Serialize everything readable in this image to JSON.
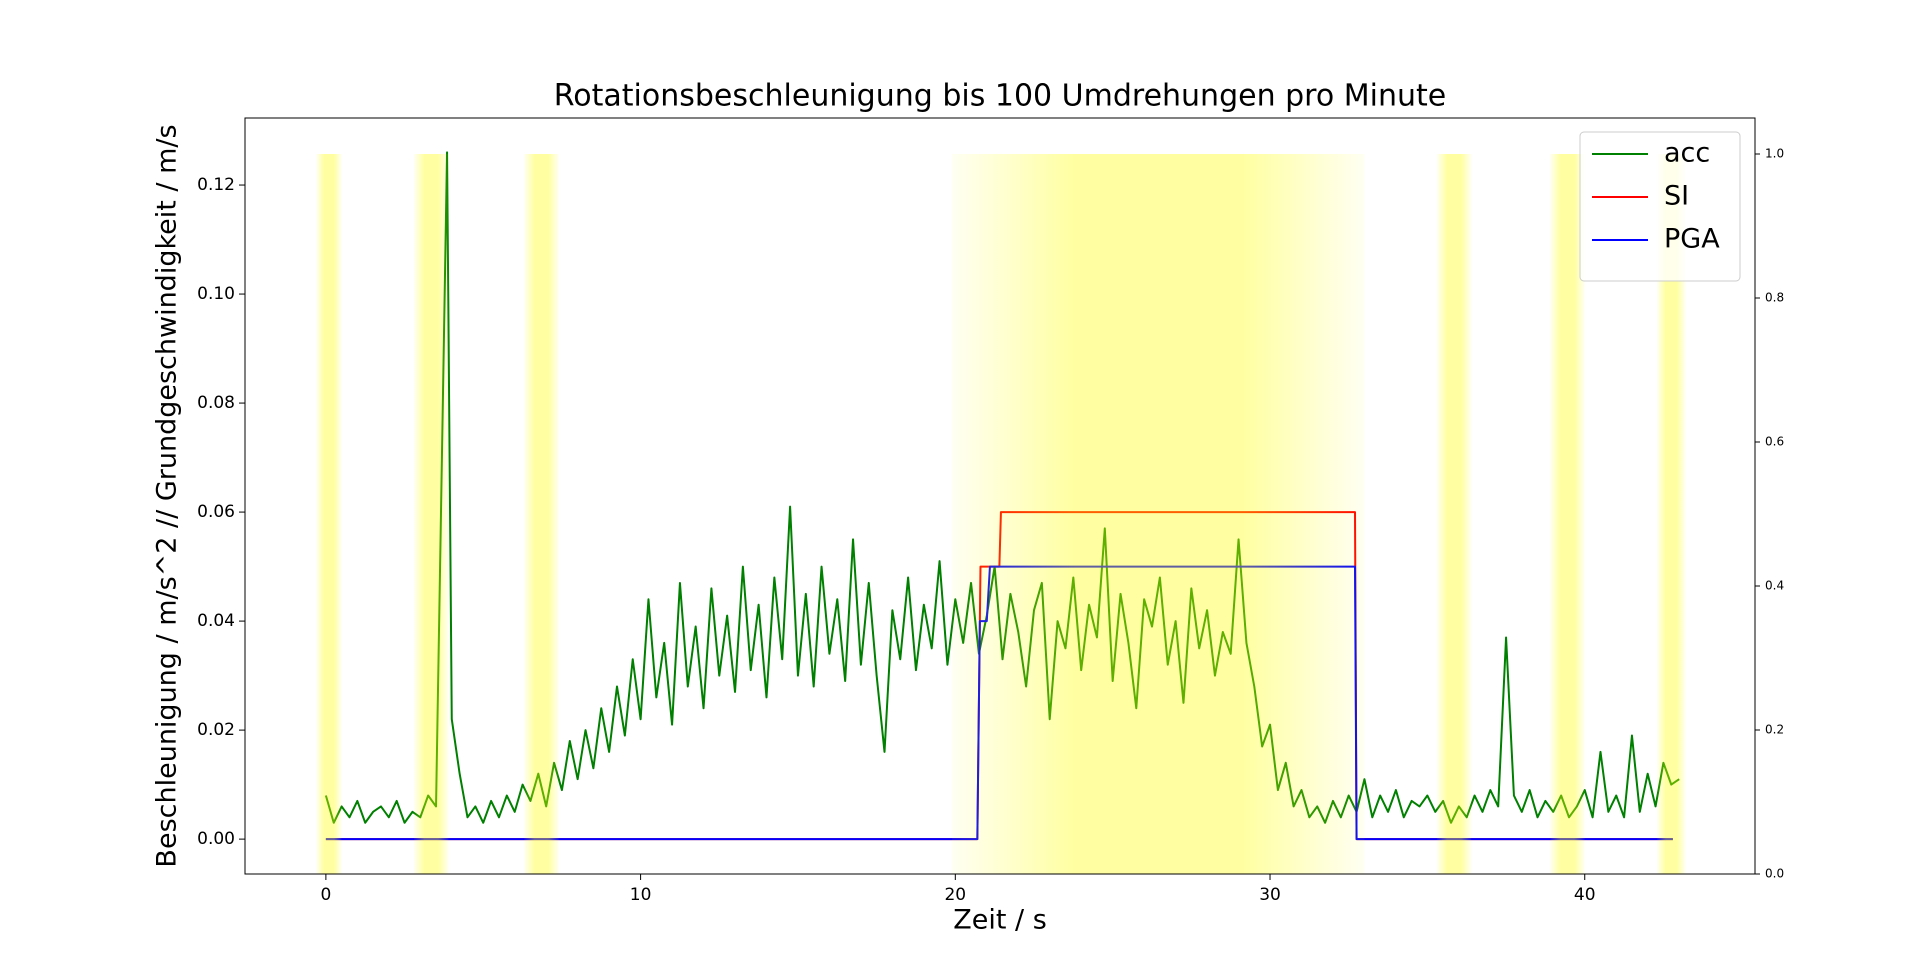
{
  "chart_data": {
    "type": "line",
    "title": "Rotationsbeschleunigung bis 100 Umdrehungen pro Minute",
    "xlabel": "Zeit / s",
    "ylabel": "Beschleunigung / m/s^2 // Grundgeschwindigkeit / m/s",
    "xlim": [
      -2.57,
      45.41
    ],
    "ylim": [
      -0.0064,
      0.1323
    ],
    "y2lim": [
      0,
      1.05
    ],
    "xticks": [
      0,
      10,
      20,
      30,
      40
    ],
    "yticks": [
      {
        "value": 0,
        "label": "0.00"
      },
      {
        "value": 0.02,
        "label": "0.02"
      },
      {
        "value": 0.04,
        "label": "0.04"
      },
      {
        "value": 0.06,
        "label": "0.06"
      },
      {
        "value": 0.08,
        "label": "0.08"
      },
      {
        "value": 0.1,
        "label": "0.10"
      },
      {
        "value": 0.12,
        "label": "0.12"
      }
    ],
    "y2ticks": [
      {
        "value": 0,
        "label": "0.0"
      },
      {
        "value": 0.2,
        "label": "0.2"
      },
      {
        "value": 0.4,
        "label": "0.4"
      },
      {
        "value": 0.6,
        "label": "0.6"
      },
      {
        "value": 0.8,
        "label": "0.8"
      },
      {
        "value": 1,
        "label": "1.0"
      }
    ],
    "legend": "upper right",
    "highlight_color": "#ffff00",
    "highlight_y2": [
      0,
      1
    ],
    "highlights": [
      [
        -0.3,
        0.5
      ],
      [
        2.8,
        3.9
      ],
      [
        6.3,
        7.4
      ],
      [
        19.9,
        33.0
      ],
      [
        35.3,
        36.4
      ],
      [
        38.9,
        40.0
      ],
      [
        42.3,
        43.2
      ]
    ],
    "series": [
      {
        "name": "acc",
        "color": "#008000",
        "x": [
          0,
          0.25,
          0.5,
          0.75,
          1,
          1.25,
          1.5,
          1.75,
          2,
          2.25,
          2.5,
          2.75,
          3,
          3.25,
          3.5,
          3.85,
          4,
          4.25,
          4.5,
          4.75,
          5,
          5.25,
          5.5,
          5.75,
          6,
          6.25,
          6.5,
          6.75,
          7,
          7.25,
          7.5,
          7.75,
          8,
          8.25,
          8.5,
          8.75,
          9,
          9.25,
          9.5,
          9.75,
          10,
          10.25,
          10.5,
          10.75,
          11,
          11.25,
          11.5,
          11.75,
          12,
          12.25,
          12.5,
          12.75,
          13,
          13.25,
          13.5,
          13.75,
          14,
          14.25,
          14.5,
          14.75,
          15,
          15.25,
          15.5,
          15.75,
          16,
          16.25,
          16.5,
          16.75,
          17,
          17.25,
          17.5,
          17.75,
          18,
          18.25,
          18.5,
          18.75,
          19,
          19.25,
          19.5,
          19.75,
          20,
          20.25,
          20.5,
          20.75,
          21,
          21.25,
          21.5,
          21.75,
          22,
          22.25,
          22.5,
          22.75,
          23,
          23.25,
          23.5,
          23.75,
          24,
          24.25,
          24.5,
          24.75,
          25,
          25.25,
          25.5,
          25.75,
          26,
          26.25,
          26.5,
          26.75,
          27,
          27.25,
          27.5,
          27.75,
          28,
          28.25,
          28.5,
          28.75,
          29,
          29.25,
          29.5,
          29.75,
          30,
          30.25,
          30.5,
          30.75,
          31,
          31.25,
          31.5,
          31.75,
          32,
          32.25,
          32.5,
          32.75,
          33,
          33.25,
          33.5,
          33.75,
          34,
          34.25,
          34.5,
          34.75,
          35,
          35.25,
          35.5,
          35.75,
          36,
          36.25,
          36.5,
          36.75,
          37,
          37.25,
          37.5,
          37.75,
          38,
          38.25,
          38.5,
          38.75,
          39,
          39.25,
          39.5,
          39.75,
          40,
          40.25,
          40.5,
          40.75,
          41,
          41.25,
          41.5,
          41.75,
          42,
          42.25,
          42.5,
          42.75,
          43
        ],
        "values": [
          0.008,
          0.003,
          0.006,
          0.004,
          0.007,
          0.003,
          0.005,
          0.006,
          0.004,
          0.007,
          0.003,
          0.005,
          0.004,
          0.008,
          0.006,
          0.126,
          0.022,
          0.012,
          0.004,
          0.006,
          0.003,
          0.007,
          0.004,
          0.008,
          0.005,
          0.01,
          0.007,
          0.012,
          0.006,
          0.014,
          0.009,
          0.018,
          0.011,
          0.02,
          0.013,
          0.024,
          0.016,
          0.028,
          0.019,
          0.033,
          0.022,
          0.044,
          0.026,
          0.036,
          0.021,
          0.047,
          0.028,
          0.039,
          0.024,
          0.046,
          0.03,
          0.041,
          0.027,
          0.05,
          0.031,
          0.043,
          0.026,
          0.048,
          0.033,
          0.061,
          0.03,
          0.045,
          0.028,
          0.05,
          0.034,
          0.044,
          0.029,
          0.055,
          0.032,
          0.047,
          0.03,
          0.016,
          0.042,
          0.033,
          0.048,
          0.031,
          0.043,
          0.035,
          0.051,
          0.032,
          0.044,
          0.036,
          0.047,
          0.034,
          0.041,
          0.05,
          0.033,
          0.045,
          0.038,
          0.028,
          0.042,
          0.047,
          0.022,
          0.04,
          0.035,
          0.048,
          0.031,
          0.043,
          0.037,
          0.057,
          0.029,
          0.045,
          0.036,
          0.024,
          0.044,
          0.039,
          0.048,
          0.032,
          0.04,
          0.025,
          0.046,
          0.035,
          0.042,
          0.03,
          0.038,
          0.034,
          0.055,
          0.036,
          0.028,
          0.017,
          0.021,
          0.009,
          0.014,
          0.006,
          0.009,
          0.004,
          0.006,
          0.003,
          0.007,
          0.004,
          0.008,
          0.005,
          0.011,
          0.004,
          0.008,
          0.005,
          0.009,
          0.004,
          0.007,
          0.006,
          0.008,
          0.005,
          0.007,
          0.003,
          0.006,
          0.004,
          0.008,
          0.005,
          0.009,
          0.006,
          0.037,
          0.008,
          0.005,
          0.009,
          0.004,
          0.007,
          0.005,
          0.008,
          0.004,
          0.006,
          0.009,
          0.004,
          0.016,
          0.005,
          0.008,
          0.004,
          0.019,
          0.005,
          0.012,
          0.006,
          0.014,
          0.01,
          0.011
        ]
      },
      {
        "name": "SI",
        "color": "#ff0000",
        "x": [
          0,
          20.7,
          20.8,
          21.4,
          21.45,
          32.7,
          32.75,
          42.8
        ],
        "values": [
          0,
          0,
          0.05,
          0.05,
          0.06,
          0.06,
          0,
          0
        ]
      },
      {
        "name": "PGA",
        "color": "#0000ff",
        "x": [
          0,
          20.7,
          20.78,
          21.0,
          21.1,
          32.7,
          32.75,
          42.8
        ],
        "values": [
          0,
          0,
          0.04,
          0.04,
          0.05,
          0.05,
          0,
          0
        ]
      }
    ]
  }
}
